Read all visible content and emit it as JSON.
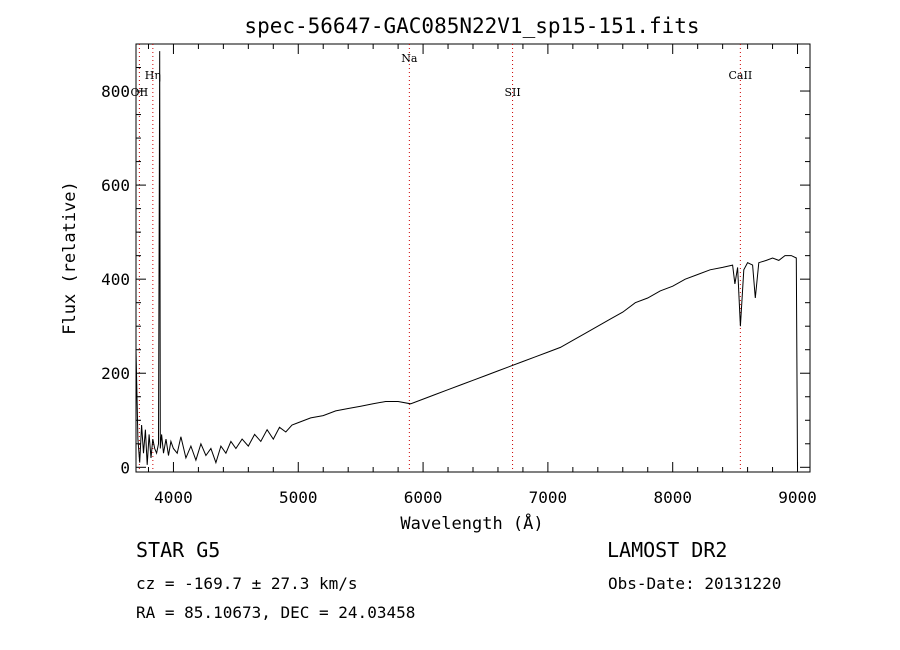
{
  "chart_data": {
    "type": "line",
    "title": "spec-56647-GAC085N22V1_sp15-151.fits",
    "xlabel": "Wavelength (Å)",
    "ylabel": "Flux (relative)",
    "xlim": [
      3700,
      9100
    ],
    "ylim": [
      -10,
      900
    ],
    "xticks": [
      4000,
      5000,
      6000,
      7000,
      8000,
      9000
    ],
    "yticks": [
      0,
      200,
      400,
      600,
      800
    ],
    "grid": false,
    "line_color": "#000000",
    "marker_color": "#cc0000",
    "lines": [
      {
        "label": "OII",
        "x": 3727
      },
      {
        "label": "Hη",
        "x": 3835
      },
      {
        "label": "Na",
        "x": 5890
      },
      {
        "label": "SII",
        "x": 6717
      },
      {
        "label": "CaII",
        "x": 8542
      }
    ],
    "series": [
      {
        "x": [
          3700,
          3715,
          3730,
          3745,
          3760,
          3775,
          3790,
          3805,
          3820,
          3835,
          3850,
          3865,
          3880,
          3890,
          3895,
          3905,
          3920,
          3940,
          3960,
          3980,
          4000,
          4030,
          4060,
          4100,
          4140,
          4180,
          4220,
          4260,
          4300,
          4340,
          4380,
          4420,
          4460,
          4500,
          4550,
          4600,
          4650,
          4700,
          4750,
          4800,
          4850,
          4900,
          4950,
          5000,
          5100,
          5200,
          5300,
          5400,
          5500,
          5600,
          5700,
          5800,
          5900,
          6000,
          6100,
          6200,
          6300,
          6400,
          6500,
          6600,
          6700,
          6800,
          6900,
          7000,
          7100,
          7200,
          7300,
          7400,
          7500,
          7600,
          7700,
          7800,
          7900,
          8000,
          8100,
          8200,
          8300,
          8400,
          8480,
          8498,
          8520,
          8542,
          8570,
          8600,
          8640,
          8662,
          8690,
          8750,
          8800,
          8850,
          8900,
          8950,
          8990,
          9000
        ],
        "values": [
          250,
          60,
          10,
          90,
          30,
          80,
          5,
          70,
          20,
          60,
          40,
          30,
          50,
          885,
          40,
          70,
          30,
          60,
          25,
          55,
          40,
          30,
          65,
          20,
          45,
          15,
          50,
          25,
          40,
          10,
          45,
          30,
          55,
          40,
          60,
          45,
          70,
          55,
          80,
          60,
          85,
          75,
          90,
          95,
          105,
          110,
          120,
          125,
          130,
          135,
          140,
          140,
          135,
          145,
          155,
          165,
          175,
          185,
          195,
          205,
          215,
          225,
          235,
          245,
          255,
          270,
          285,
          300,
          315,
          330,
          350,
          360,
          375,
          385,
          400,
          410,
          420,
          425,
          430,
          390,
          425,
          300,
          420,
          435,
          430,
          360,
          435,
          440,
          445,
          440,
          450,
          450,
          445,
          0
        ]
      }
    ]
  },
  "footer": {
    "star_class": "STAR    G5",
    "survey": "LAMOST DR2",
    "cz": "cz = -169.7 ± 27.3 km/s",
    "obs_date": "Obs-Date: 20131220",
    "radec": "RA =  85.10673, DEC =  24.03458"
  }
}
